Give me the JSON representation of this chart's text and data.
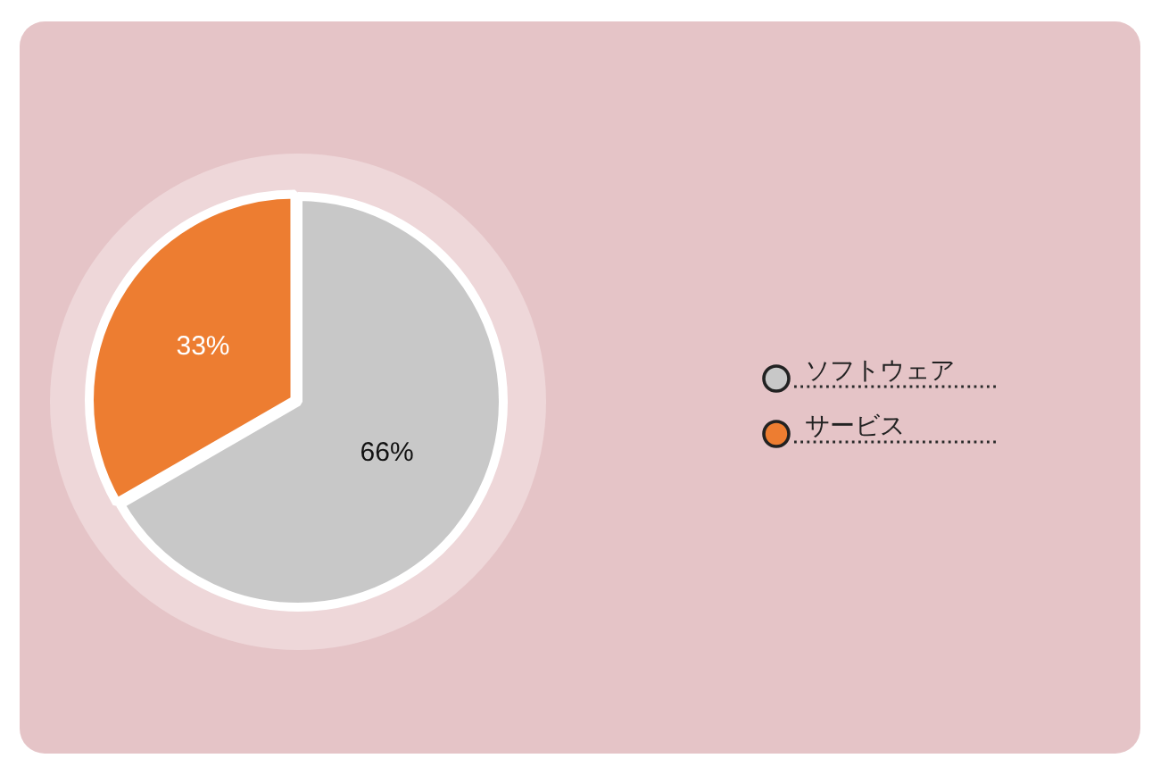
{
  "chart_data": {
    "type": "pie",
    "categories": [
      "ソフトウェア",
      "サービス"
    ],
    "values": [
      66,
      33
    ],
    "colors": [
      "#c8c8c8",
      "#ed7d31"
    ],
    "value_labels": [
      "66%",
      "33%"
    ],
    "legend": "right"
  }
}
